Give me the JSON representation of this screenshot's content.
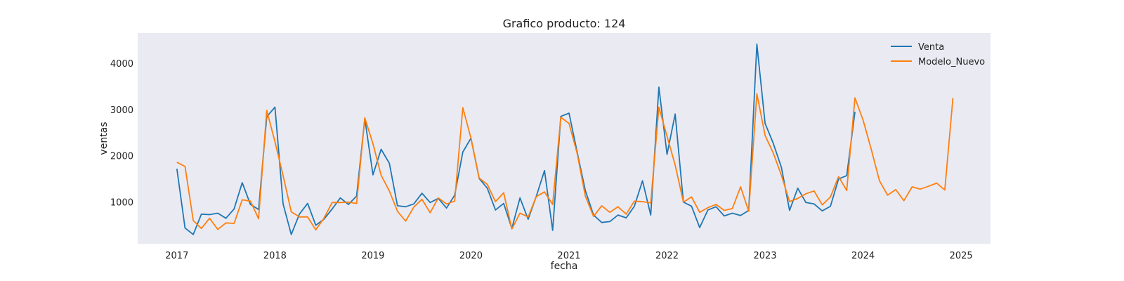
{
  "chart_data": {
    "type": "line",
    "title": "Grafico producto: 124",
    "xlabel": "fecha",
    "ylabel": "ventas",
    "xlim": [
      2016.6,
      2025.3
    ],
    "ylim": [
      100,
      4650
    ],
    "x_ticks": [
      2017,
      2018,
      2019,
      2020,
      2021,
      2022,
      2023,
      2024,
      2025
    ],
    "y_ticks": [
      1000,
      2000,
      3000,
      4000
    ],
    "grid": false,
    "legend_position": "top-right",
    "background": "#eaeaf2",
    "series": [
      {
        "name": "Venta",
        "color": "#1f77b4",
        "start": 2017,
        "values": [
          1720,
          440,
          300,
          740,
          730,
          760,
          650,
          850,
          1420,
          950,
          840,
          2840,
          3050,
          960,
          300,
          740,
          970,
          500,
          630,
          850,
          1090,
          950,
          1130,
          2800,
          1590,
          2140,
          1840,
          920,
          900,
          960,
          1190,
          990,
          1080,
          870,
          1150,
          2080,
          2380,
          1510,
          1300,
          830,
          970,
          430,
          1090,
          630,
          1130,
          1680,
          390,
          2850,
          2920,
          2080,
          1250,
          720,
          560,
          580,
          720,
          660,
          910,
          1460,
          720,
          3480,
          2030,
          2900,
          1000,
          910,
          450,
          830,
          900,
          700,
          760,
          710,
          820,
          4410,
          2700,
          2270,
          1750,
          820,
          1300,
          990,
          960,
          810,
          910,
          1500,
          1570,
          2950
        ]
      },
      {
        "name": "Modelo_Nuevo",
        "color": "#ff7f0e",
        "start": 2017,
        "values": [
          1860,
          1770,
          600,
          430,
          650,
          410,
          550,
          540,
          1050,
          1020,
          640,
          2980,
          2300,
          1570,
          790,
          680,
          680,
          400,
          650,
          990,
          990,
          1000,
          970,
          2820,
          2260,
          1580,
          1240,
          800,
          590,
          890,
          1060,
          770,
          1090,
          960,
          1020,
          3040,
          2380,
          1520,
          1380,
          1010,
          1200,
          420,
          760,
          680,
          1120,
          1220,
          950,
          2830,
          2700,
          2050,
          1130,
          690,
          920,
          780,
          900,
          740,
          1020,
          1010,
          980,
          3050,
          2420,
          1800,
          1000,
          1110,
          780,
          880,
          950,
          820,
          860,
          1330,
          800,
          3340,
          2440,
          2060,
          1580,
          1010,
          1080,
          1180,
          1240,
          940,
          1110,
          1550,
          1250,
          3250,
          2770,
          2140,
          1460,
          1150,
          1270,
          1030,
          1330,
          1280,
          1340,
          1410,
          1260,
          3250
        ]
      }
    ]
  }
}
